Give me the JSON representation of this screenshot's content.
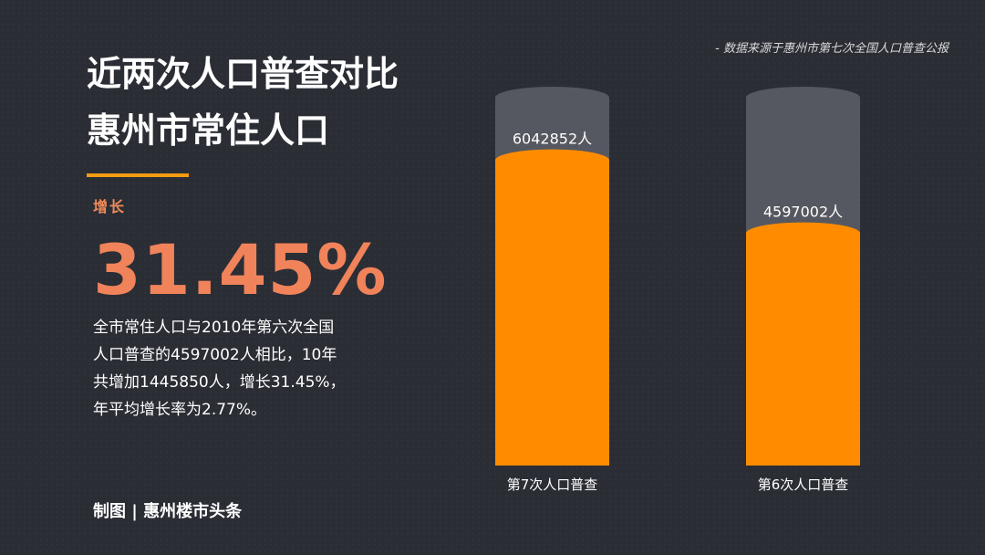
{
  "source_note": "- 数据来源于惠州市第七次全国人口普查公报",
  "title_line1": "近两次人口普查对比",
  "title_line2": "惠州市常住人口",
  "growth_label": "增长",
  "growth_pct": "31.45%",
  "description": [
    "全市常住人口与2010年第六次全国",
    "人口普查的4597002人相比，10年",
    "共增加1445850人，增长31.45%，",
    "年平均增长率为2.77%。"
  ],
  "credit": "制图 | 惠州楼市头条",
  "colors": {
    "fill": "#ff8c00",
    "track": "#555860",
    "accent": "#f39c12",
    "highlight": "#f0835a"
  },
  "chart_data": {
    "type": "bar",
    "categories": [
      "第7次人口普查",
      "第6次人口普查"
    ],
    "values": [
      6042852,
      4597002
    ],
    "data_labels": [
      "6042852人",
      "4597002人"
    ],
    "ylim": [
      0,
      7500000
    ],
    "title": "",
    "xlabel": "",
    "ylabel": "",
    "grid": false,
    "legend": "none"
  }
}
